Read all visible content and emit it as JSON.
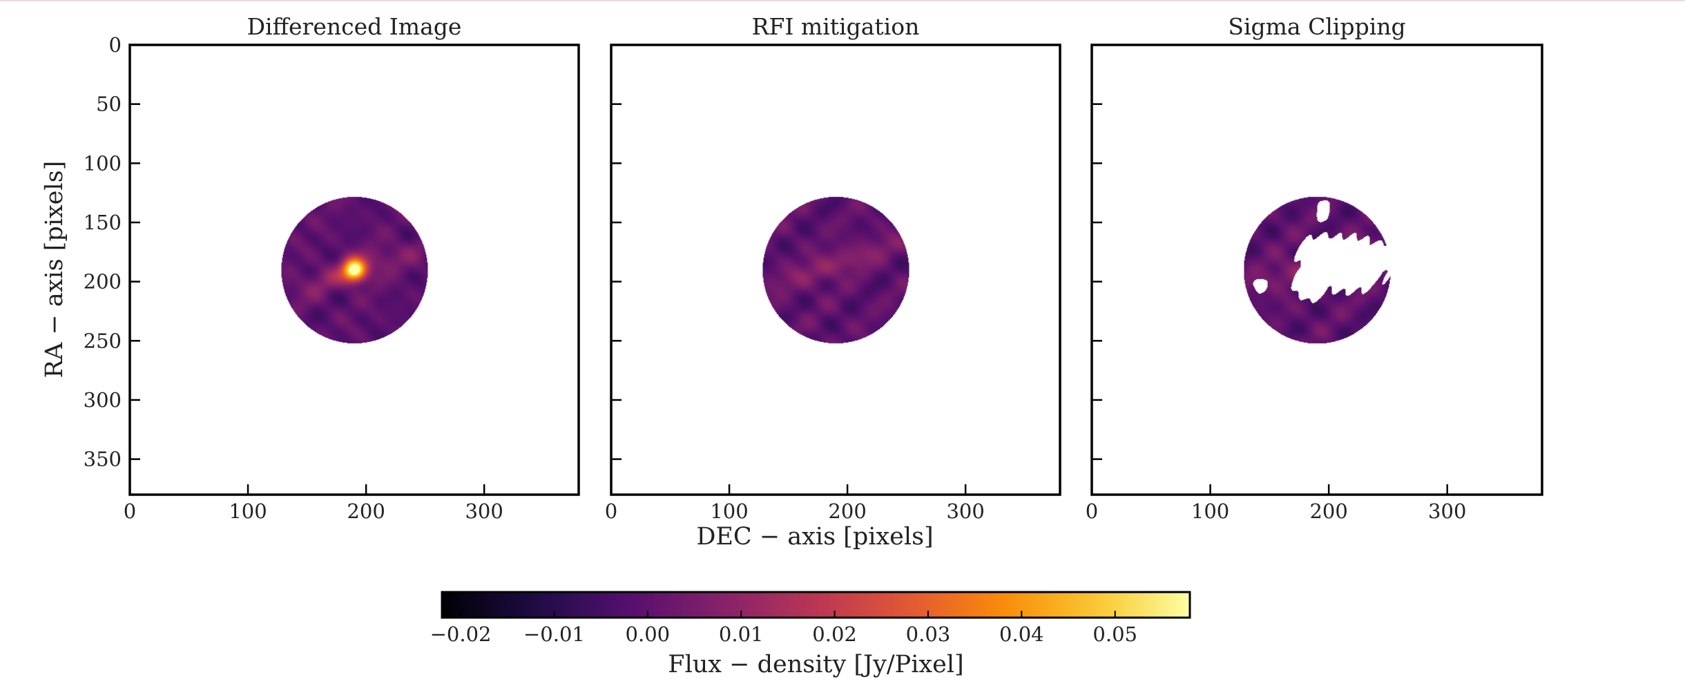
{
  "chart_data": {
    "type": "heatmap",
    "panels": [
      {
        "title": "Differenced Image",
        "xlim": [
          0,
          380
        ],
        "ylim": [
          380,
          0
        ],
        "xticks": [
          0,
          100,
          200,
          300
        ],
        "yticks": [
          0,
          50,
          100,
          150,
          200,
          250,
          300,
          350
        ],
        "disk": {
          "center_x": 190,
          "center_y": 190,
          "radius": 62
        },
        "peak": {
          "x": 190,
          "y": 190,
          "value": 0.057
        },
        "masked_regions": []
      },
      {
        "title": "RFI mitigation",
        "xlim": [
          0,
          380
        ],
        "ylim": [
          380,
          0
        ],
        "xticks": [
          0,
          100,
          200,
          300
        ],
        "yticks": [
          0,
          50,
          100,
          150,
          200,
          250,
          300,
          350
        ],
        "disk": {
          "center_x": 190,
          "center_y": 190,
          "radius": 62
        },
        "peak": {
          "x": 190,
          "y": 185,
          "value": 0.02
        },
        "masked_regions": []
      },
      {
        "title": "Sigma Clipping",
        "xlim": [
          0,
          380
        ],
        "ylim": [
          380,
          0
        ],
        "xticks": [
          0,
          100,
          200,
          300
        ],
        "yticks": [
          0,
          50,
          100,
          150,
          200,
          250,
          300,
          350
        ],
        "disk": {
          "center_x": 190,
          "center_y": 190,
          "radius": 62
        },
        "peak": {
          "x": 190,
          "y": 185,
          "value": 0.02
        },
        "masked_regions": [
          {
            "x": 215,
            "y": 185,
            "rx": 36,
            "ry": 24
          },
          {
            "x": 195,
            "y": 180,
            "rx": 22,
            "ry": 20
          },
          {
            "x": 185,
            "y": 200,
            "rx": 16,
            "ry": 16
          },
          {
            "x": 240,
            "y": 180,
            "rx": 16,
            "ry": 14
          },
          {
            "x": 195,
            "y": 140,
            "rx": 6,
            "ry": 10
          },
          {
            "x": 142,
            "y": 203,
            "rx": 6,
            "ry": 6
          }
        ]
      }
    ],
    "xlabel": "DEC − axis [pixels]",
    "ylabel": "RA − axis [pixels]",
    "colorbar": {
      "label": "Flux − density [Jy/Pixel]",
      "colormap": "inferno",
      "range": [
        -0.022,
        0.058
      ],
      "ticks": [
        -0.02,
        -0.01,
        0.0,
        0.01,
        0.02,
        0.03,
        0.04,
        0.05
      ],
      "tick_labels": [
        "−0.02",
        "−0.01",
        "0.00",
        "0.01",
        "0.02",
        "0.03",
        "0.04",
        "0.05"
      ]
    },
    "grid": false,
    "legend": "none"
  }
}
